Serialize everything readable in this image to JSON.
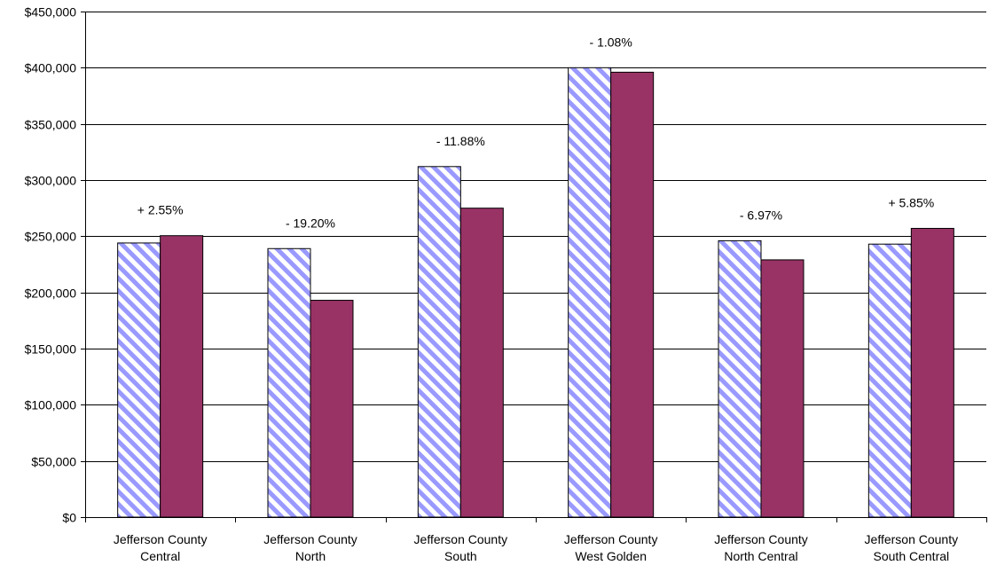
{
  "chart_data": {
    "type": "bar",
    "categories": [
      [
        "Jefferson County",
        "Central"
      ],
      [
        "Jefferson County",
        "North"
      ],
      [
        "Jefferson County",
        "South"
      ],
      [
        "Jefferson County",
        "West Golden"
      ],
      [
        "Jefferson County",
        "North Central"
      ],
      [
        "Jefferson County",
        "South Central"
      ]
    ],
    "series": [
      {
        "values": [
          244000,
          239000,
          312000,
          400000,
          246000,
          243000
        ],
        "fill": "hatched",
        "color": "#9999ff"
      },
      {
        "values": [
          250500,
          193000,
          275000,
          396000,
          229000,
          257000
        ],
        "fill": "solid",
        "color": "#993366"
      }
    ],
    "annotations": [
      "+ 2.55%",
      "- 19.20%",
      "- 11.88%",
      "- 1.08%",
      "- 6.97%",
      "+ 5.85%"
    ],
    "y_ticks": [
      "$0",
      "$50,000",
      "$100,000",
      "$150,000",
      "$200,000",
      "$250,000",
      "$300,000",
      "$350,000",
      "$400,000",
      "$450,000"
    ],
    "ylim": [
      0,
      450000
    ],
    "ytick_step": 50000,
    "grid": true,
    "title": "",
    "xlabel": "",
    "ylabel": ""
  }
}
